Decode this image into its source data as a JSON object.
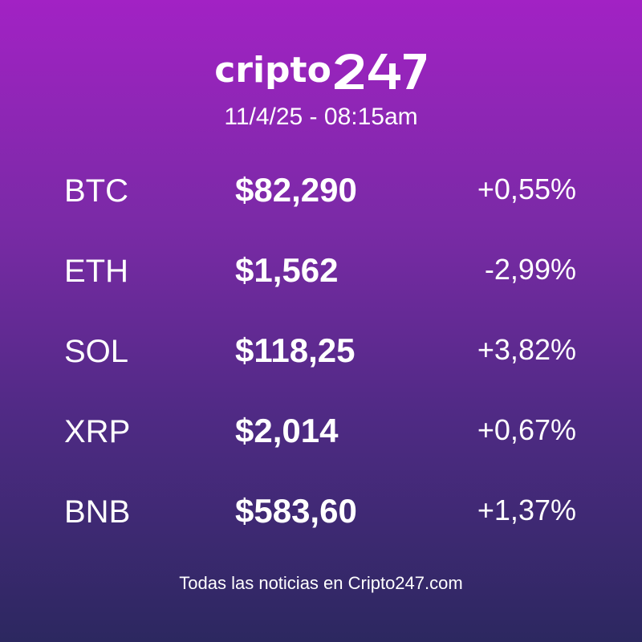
{
  "header": {
    "logo_text": "cripto",
    "logo_mark": "247",
    "datetime": "11/4/25  - 08:15am"
  },
  "rows": [
    {
      "symbol": "BTC",
      "price": "$82,290",
      "change": "+0,55%"
    },
    {
      "symbol": "ETH",
      "price": "$1,562",
      "change": "-2,99%"
    },
    {
      "symbol": "SOL",
      "price": "$118,25",
      "change": "+3,82%"
    },
    {
      "symbol": "XRP",
      "price": "$2,014",
      "change": "+0,67%"
    },
    {
      "symbol": "BNB",
      "price": "$583,60",
      "change": "+1,37%"
    }
  ],
  "footer": {
    "text": "Todas las noticias en Cripto247.com"
  },
  "colors": {
    "gradient_top": "#a222c4",
    "gradient_bottom": "#2c2860",
    "text": "#ffffff"
  }
}
